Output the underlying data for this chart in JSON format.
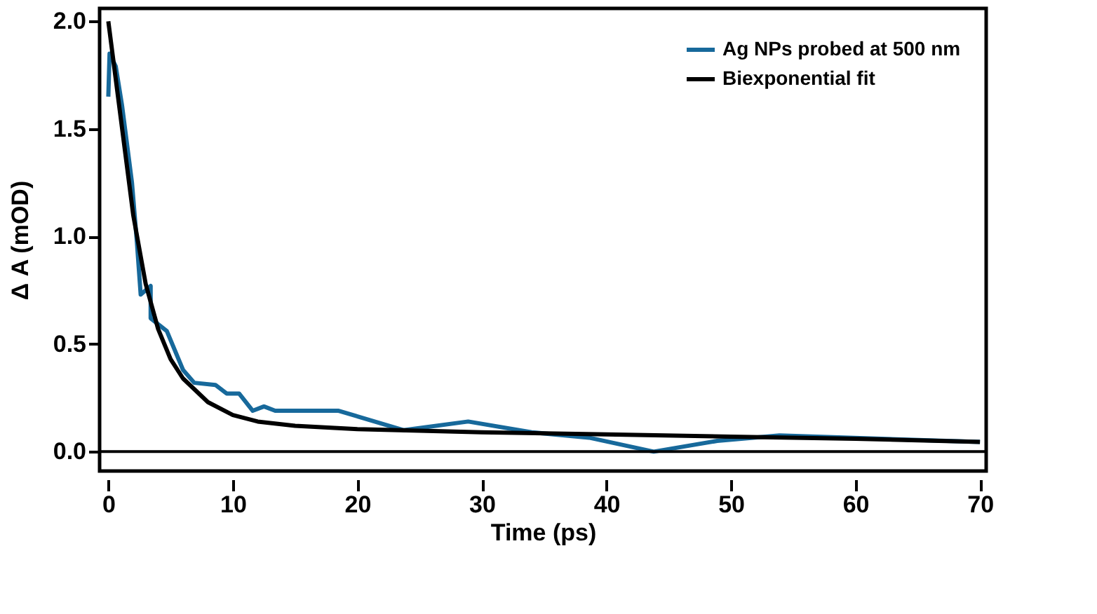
{
  "chart_data": {
    "type": "line",
    "xlabel": "Time (ps)",
    "ylabel": "Δ A (mOD)",
    "xlim": [
      -0.7,
      70.5
    ],
    "ylim": [
      -0.09,
      2.06
    ],
    "xticks": [
      0,
      10,
      20,
      30,
      40,
      50,
      60,
      70
    ],
    "yticks": [
      {
        "value": 0,
        "label": "0.0"
      },
      0.5,
      {
        "value": 1,
        "label": "1.0"
      },
      1.5,
      {
        "value": 2,
        "label": "2.0"
      }
    ],
    "grid": false,
    "legend": "top right",
    "line_style": "solid",
    "marker": "none",
    "ref_lines": [
      {
        "axis": "y",
        "value": 0,
        "color": "#000000",
        "line_style": "solid"
      }
    ],
    "series": [
      {
        "name": "Ag NPs probed at 500 nm",
        "color": "#17699b",
        "x": [
          0,
          0.1,
          0.6,
          1.1,
          1.9,
          2.3,
          2.6,
          3.4,
          3.4,
          4.7,
          6.0,
          6.9,
          8.6,
          9.5,
          10.5,
          11.6,
          12.5,
          13.4,
          18.5,
          23.7,
          28.9,
          34,
          38.6,
          43.8,
          48.9,
          53.9,
          70
        ],
        "values": [
          1.65,
          1.85,
          1.79,
          1.61,
          1.25,
          0.97,
          0.73,
          0.77,
          0.62,
          0.56,
          0.38,
          0.32,
          0.31,
          0.27,
          0.27,
          0.19,
          0.21,
          0.19,
          0.19,
          0.1,
          0.14,
          0.09,
          0.065,
          0.0,
          0.05,
          0.075,
          0.045
        ]
      },
      {
        "name": "Biexponential fit",
        "color": "#000000",
        "x": [
          0,
          1,
          2,
          3,
          4,
          5,
          6,
          8,
          10,
          12,
          15,
          20,
          30,
          40,
          50,
          60,
          70
        ],
        "values": [
          2.0,
          1.55,
          1.1,
          0.78,
          0.57,
          0.43,
          0.34,
          0.23,
          0.17,
          0.14,
          0.12,
          0.105,
          0.09,
          0.08,
          0.07,
          0.06,
          0.045
        ]
      }
    ]
  }
}
